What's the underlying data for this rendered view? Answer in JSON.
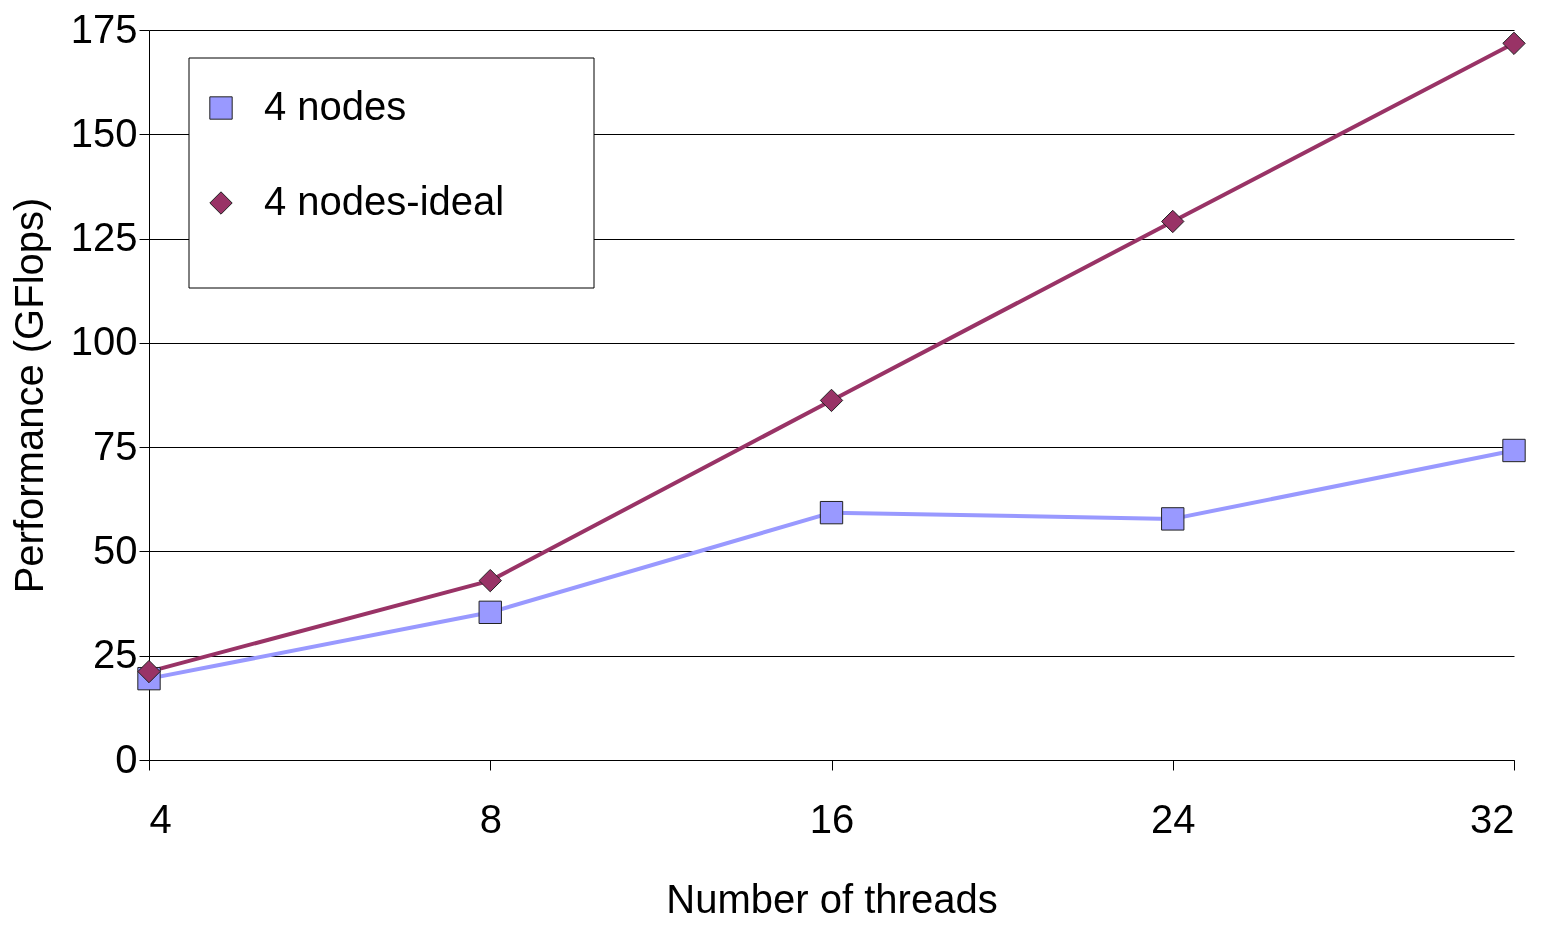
{
  "chart_data": {
    "type": "line",
    "xlabel": "Number of threads",
    "ylabel": "Performance (GFlops)",
    "categories": [
      "4",
      "8",
      "16",
      "24",
      "32"
    ],
    "series": [
      {
        "name": "4 nodes",
        "color": "#9999ff",
        "marker": "square",
        "values": [
          19.5,
          35.4,
          59.3,
          57.8,
          74.2
        ]
      },
      {
        "name": "4 nodes-ideal",
        "color": "#993366",
        "marker": "diamond",
        "values": [
          21.2,
          43,
          86.2,
          129.1,
          171.8
        ]
      }
    ],
    "ylim": [
      0,
      175
    ],
    "yticks": [
      0,
      25,
      50,
      75,
      100,
      125,
      150,
      175
    ],
    "grid": "y",
    "legend": "top left",
    "line_style": "solid"
  }
}
